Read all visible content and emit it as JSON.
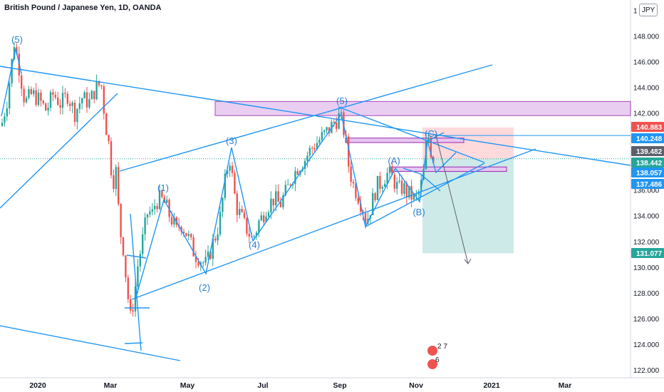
{
  "header": {
    "title": "British Pound / Japanese Yen, 1D, OANDA",
    "currency_button": "JPY"
  },
  "colors": {
    "up": "#26a69a",
    "down": "#ef5350",
    "drawing": "#2196f3",
    "zone_fill": "#e6c6f0",
    "zone_border": "#9c27b0",
    "profit_zone": "#b2dfdb",
    "loss_zone": "#ffcdd2"
  },
  "chart_data": {
    "type": "candlestick",
    "title": "British Pound / Japanese Yen, 1D, OANDA",
    "ylim": [
      122,
      150
    ],
    "y_ticks": [
      "122.000",
      "124.000",
      "126.000",
      "128.000",
      "130.000",
      "132.000",
      "134.000",
      "136.000",
      "138.000",
      "140.000",
      "142.000",
      "144.000",
      "146.000",
      "148.000",
      "1"
    ],
    "x_ticks": [
      "2020",
      "Mar",
      "May",
      "Jul",
      "Sep",
      "Nov",
      "2021",
      "Mar"
    ],
    "price_labels": [
      {
        "value": "140.883",
        "color": "#ef5350"
      },
      {
        "value": "140.248",
        "color": "#2196f3"
      },
      {
        "value": "139.482",
        "color": "#5d606b"
      },
      {
        "value": "138.442",
        "color": "#26a69a"
      },
      {
        "value": "138.057",
        "color": "#2196f3"
      },
      {
        "value": "137.486",
        "color": "#2196f3"
      },
      {
        "value": "131.077",
        "color": "#26a69a"
      }
    ],
    "wave_labels": [
      "(5)",
      "(1)",
      "(2)",
      "(3)",
      "(4)",
      "(5)",
      "(A)",
      "(B)",
      "(C)"
    ],
    "close_path": [
      [
        0,
        140.5
      ],
      [
        10,
        143.0
      ],
      [
        20,
        147.5
      ],
      [
        27,
        145.5
      ],
      [
        35,
        142.8
      ],
      [
        45,
        143.5
      ],
      [
        55,
        143.0
      ],
      [
        65,
        142.2
      ],
      [
        75,
        143.5
      ],
      [
        85,
        142.7
      ],
      [
        95,
        143.4
      ],
      [
        105,
        142.0
      ],
      [
        115,
        143.2
      ],
      [
        125,
        142.8
      ],
      [
        135,
        144.0
      ],
      [
        142,
        144.3
      ],
      [
        148,
        141.2
      ],
      [
        153,
        139.5
      ],
      [
        158,
        136.5
      ],
      [
        163,
        137.5
      ],
      [
        168,
        133.0
      ],
      [
        173,
        131.5
      ],
      [
        178,
        128.5
      ],
      [
        183,
        126.0
      ],
      [
        188,
        127.5
      ],
      [
        193,
        130.0
      ],
      [
        198,
        131.5
      ],
      [
        203,
        133.0
      ],
      [
        208,
        134.5
      ],
      [
        213,
        134.0
      ],
      [
        218,
        135.0
      ],
      [
        223,
        135.3
      ],
      [
        228,
        135.2
      ],
      [
        233,
        134.8
      ],
      [
        238,
        134.0
      ],
      [
        243,
        133.5
      ],
      [
        248,
        132.8
      ],
      [
        253,
        133.5
      ],
      [
        258,
        133.0
      ],
      [
        263,
        132.5
      ],
      [
        268,
        131.8
      ],
      [
        273,
        131.0
      ],
      [
        278,
        130.8
      ],
      [
        283,
        130.5
      ],
      [
        288,
        130.2
      ],
      [
        293,
        130.7
      ],
      [
        298,
        131.8
      ],
      [
        303,
        132.5
      ],
      [
        308,
        133.5
      ],
      [
        313,
        135.5
      ],
      [
        318,
        137.5
      ],
      [
        323,
        138.5
      ],
      [
        328,
        136.0
      ],
      [
        333,
        134.5
      ],
      [
        338,
        134.0
      ],
      [
        343,
        133.3
      ],
      [
        348,
        132.8
      ],
      [
        353,
        132.2
      ],
      [
        358,
        132.6
      ],
      [
        363,
        133.5
      ],
      [
        368,
        133.9
      ],
      [
        373,
        134.6
      ],
      [
        378,
        134.9
      ],
      [
        383,
        135.3
      ],
      [
        388,
        135.2
      ],
      [
        393,
        134.8
      ],
      [
        398,
        135.5
      ],
      [
        403,
        136.0
      ],
      [
        408,
        136.8
      ],
      [
        413,
        137.3
      ],
      [
        418,
        137.8
      ],
      [
        423,
        138.1
      ],
      [
        428,
        138.4
      ],
      [
        433,
        138.9
      ],
      [
        438,
        139.3
      ],
      [
        443,
        139.6
      ],
      [
        448,
        139.9
      ],
      [
        453,
        140.2
      ],
      [
        458,
        140.5
      ],
      [
        463,
        140.8
      ],
      [
        468,
        141.2
      ],
      [
        473,
        141.5
      ],
      [
        477,
        141.8
      ],
      [
        481,
        141.0
      ],
      [
        485,
        140.0
      ],
      [
        489,
        138.0
      ],
      [
        493,
        137.0
      ],
      [
        497,
        136.2
      ],
      [
        501,
        135.8
      ],
      [
        505,
        135.2
      ],
      [
        510,
        134.5
      ],
      [
        514,
        133.5
      ],
      [
        518,
        134.2
      ],
      [
        522,
        135.0
      ],
      [
        526,
        135.8
      ],
      [
        530,
        136.4
      ],
      [
        534,
        136.5
      ],
      [
        538,
        136.9
      ],
      [
        542,
        137.2
      ],
      [
        546,
        137.3
      ],
      [
        550,
        137.0
      ],
      [
        554,
        136.6
      ],
      [
        558,
        136.2
      ],
      [
        562,
        136.0
      ],
      [
        566,
        136.3
      ],
      [
        570,
        135.8
      ],
      [
        574,
        135.7
      ],
      [
        578,
        135.5
      ],
      [
        582,
        135.2
      ],
      [
        586,
        135.5
      ],
      [
        590,
        136.2
      ],
      [
        594,
        137.0
      ],
      [
        598,
        139.5
      ],
      [
        602,
        140.2
      ],
      [
        606,
        138.6
      ],
      [
        610,
        138.4
      ]
    ]
  }
}
